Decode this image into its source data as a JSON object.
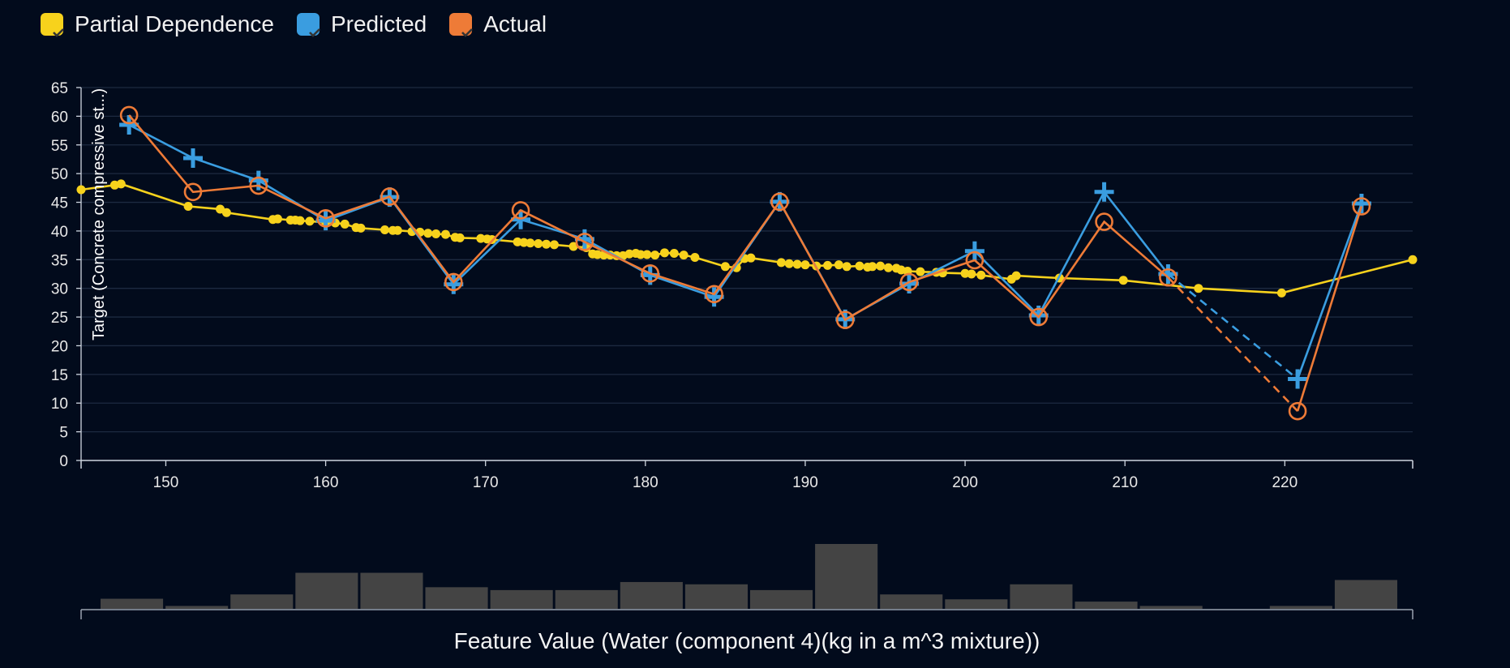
{
  "legend": {
    "items": [
      {
        "label": "Partial Dependence",
        "color": "#f7d21c"
      },
      {
        "label": "Predicted",
        "color": "#3a9de0"
      },
      {
        "label": "Actual",
        "color": "#ee7b37"
      }
    ]
  },
  "chart_data": {
    "type": "line",
    "ylabel": "Target (Concrete compressive st...)",
    "xlabel": "Feature Value (Water (component 4)(kg in a m^3 mixture))",
    "xlim": [
      144.7,
      228
    ],
    "ylim": [
      0,
      65
    ],
    "x_ticks": [
      150,
      160,
      170,
      180,
      190,
      200,
      210,
      220
    ],
    "y_ticks": [
      0,
      5,
      10,
      15,
      20,
      25,
      30,
      35,
      40,
      45,
      50,
      55,
      60,
      65
    ],
    "grid": true,
    "legend_position": "top-left",
    "series": [
      {
        "name": "Partial Dependence",
        "color": "#f7d21c",
        "marker": "dot",
        "x": [
          144.7,
          146.8,
          147.2,
          151.4,
          153.4,
          153.8,
          156.7,
          157.0,
          157.8,
          158.1,
          158.4,
          159.0,
          160.0,
          160.6,
          161.2,
          161.9,
          162.2,
          163.7,
          164.2,
          164.5,
          165.4,
          165.9,
          166.4,
          166.9,
          167.5,
          168.1,
          168.4,
          169.7,
          170.1,
          170.4,
          172.0,
          172.4,
          172.8,
          173.3,
          173.8,
          174.3,
          175.5,
          176.3,
          176.7,
          177.0,
          177.4,
          177.8,
          178.2,
          178.6,
          179.0,
          179.4,
          179.7,
          180.1,
          180.6,
          181.2,
          181.8,
          182.4,
          183.1,
          185.0,
          185.7,
          186.2,
          186.6,
          188.5,
          189.0,
          189.5,
          190.0,
          190.7,
          191.4,
          192.1,
          192.6,
          193.4,
          193.9,
          194.2,
          194.7,
          195.2,
          195.7,
          196.0,
          196.4,
          197.2,
          198.2,
          198.6,
          200.0,
          200.4,
          201.0,
          202.9,
          203.2,
          205.9,
          209.9,
          214.6,
          219.8,
          228.0
        ],
        "y": [
          47.2,
          48.0,
          48.2,
          44.3,
          43.8,
          43.2,
          42.0,
          42.1,
          41.9,
          41.9,
          41.8,
          41.7,
          41.5,
          41.4,
          41.2,
          40.6,
          40.5,
          40.2,
          40.1,
          40.1,
          39.9,
          39.8,
          39.6,
          39.5,
          39.4,
          38.9,
          38.8,
          38.7,
          38.6,
          38.5,
          38.1,
          38.0,
          37.9,
          37.8,
          37.7,
          37.6,
          37.3,
          37.1,
          36.0,
          35.9,
          35.8,
          35.8,
          35.7,
          35.7,
          36.0,
          36.1,
          35.9,
          35.9,
          35.8,
          36.2,
          36.1,
          35.8,
          35.4,
          33.8,
          33.6,
          35.2,
          35.3,
          34.5,
          34.3,
          34.2,
          34.1,
          33.9,
          34.0,
          34.1,
          33.8,
          33.9,
          33.7,
          33.8,
          33.9,
          33.6,
          33.5,
          33.2,
          33.0,
          32.9,
          32.8,
          32.7,
          32.6,
          32.5,
          32.3,
          31.6,
          32.2,
          31.8,
          31.4,
          30.0,
          29.2,
          35.0
        ]
      },
      {
        "name": "Predicted",
        "color": "#3a9de0",
        "marker": "plus",
        "x": [
          147.7,
          151.7,
          155.8,
          160.0,
          164.0,
          168.0,
          172.2,
          176.2,
          180.3,
          184.3,
          188.4,
          192.5,
          196.5,
          200.6,
          204.6,
          208.7,
          212.7,
          220.8,
          224.8
        ],
        "y": [
          58.5,
          52.7,
          48.8,
          41.8,
          45.9,
          30.7,
          42.0,
          38.6,
          32.3,
          28.5,
          45.1,
          24.6,
          30.8,
          36.5,
          25.3,
          46.8,
          32.5,
          14.2,
          44.8
        ],
        "dashed_from_index": 16
      },
      {
        "name": "Actual",
        "color": "#ee7b37",
        "marker": "circle",
        "x": [
          147.7,
          151.7,
          155.8,
          160.0,
          164.0,
          168.0,
          172.2,
          176.2,
          180.3,
          184.3,
          188.4,
          192.5,
          196.5,
          200.6,
          204.6,
          208.7,
          212.7,
          220.8,
          224.8
        ],
        "y": [
          60.2,
          46.8,
          47.9,
          42.2,
          46.0,
          31.1,
          43.6,
          38.1,
          32.6,
          29.0,
          45.1,
          24.5,
          31.1,
          34.9,
          25.0,
          41.6,
          31.9,
          8.6,
          44.3
        ],
        "dashed_from_index": 16
      }
    ],
    "histogram": {
      "values": [
        3.5,
        1,
        5,
        12.5,
        12.5,
        7.5,
        6.5,
        6.5,
        9.3,
        8.5,
        6.5,
        22.5,
        5,
        3.3,
        8.5,
        2.5,
        1,
        0,
        1,
        10
      ],
      "color": "#444444"
    }
  }
}
